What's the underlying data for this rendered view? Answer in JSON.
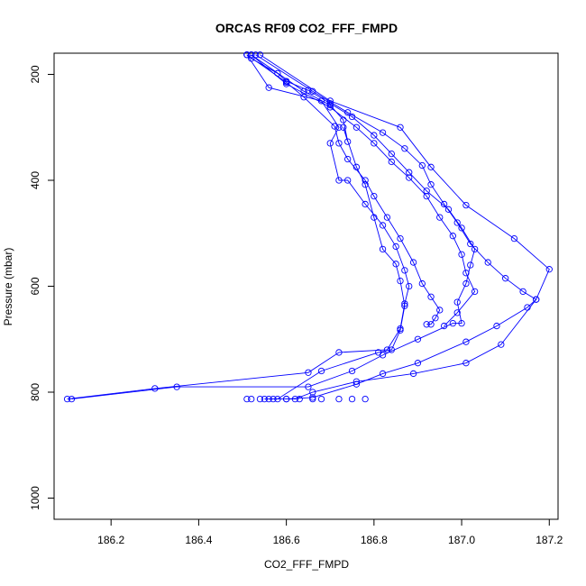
{
  "chart_data": {
    "type": "line",
    "title": "ORCAS RF09 CO2_FFF_FMPD",
    "xlabel": "CO2_FFF_FMPD",
    "ylabel": "Pressure (mbar)",
    "xlim": [
      186.07,
      187.22
    ],
    "ylim": [
      1040,
      160
    ],
    "x_ticks": [
      "186.2",
      "186.4",
      "186.6",
      "186.8",
      "187.0",
      "187.2"
    ],
    "y_ticks": [
      "200",
      "400",
      "600",
      "800",
      "1000"
    ],
    "grid": false,
    "legend": "none",
    "line_color": "#0000ff",
    "marker": "open-circle",
    "series": [
      {
        "x": [
          186.51,
          186.52,
          186.58,
          186.6,
          186.65,
          186.7,
          186.75,
          186.8,
          186.84,
          186.88,
          186.92,
          186.97,
          187.0,
          187.03,
          187.02,
          187.01,
          186.99,
          187.0,
          186.98,
          186.9,
          186.82,
          186.75,
          186.65,
          186.35,
          186.11
        ],
        "y": [
          163,
          170,
          198,
          213,
          230,
          255,
          280,
          315,
          350,
          385,
          420,
          455,
          490,
          530,
          560,
          595,
          630,
          670,
          670,
          700,
          730,
          760,
          790,
          790,
          813
        ]
      },
      {
        "x": [
          186.51,
          186.6,
          186.64,
          186.71,
          186.72,
          186.74,
          186.78,
          186.8,
          186.83,
          186.86,
          186.89,
          186.91,
          186.93,
          186.95,
          186.94,
          186.93,
          186.92
        ],
        "y": [
          163,
          215,
          243,
          298,
          330,
          360,
          400,
          430,
          470,
          510,
          555,
          595,
          620,
          645,
          660,
          672,
          672
        ]
      },
      {
        "x": [
          186.51,
          186.56,
          186.68,
          186.72,
          186.7,
          186.72,
          186.74,
          186.78,
          186.82,
          186.85,
          186.87,
          186.88,
          186.87,
          186.86,
          186.83,
          186.72,
          186.65,
          186.3,
          186.1
        ],
        "y": [
          163,
          225,
          250,
          300,
          330,
          400,
          400,
          445,
          485,
          525,
          570,
          600,
          633,
          680,
          720,
          725,
          763,
          793,
          813
        ]
      },
      {
        "x": [
          186.52,
          186.64,
          186.7,
          186.73,
          186.74,
          186.73,
          186.76,
          186.78,
          186.8,
          186.82,
          186.85,
          186.86,
          186.87,
          186.86,
          186.84,
          186.81,
          186.68,
          186.58,
          186.55
        ],
        "y": [
          163,
          232,
          258,
          286,
          327,
          300,
          375,
          408,
          470,
          530,
          558,
          590,
          637,
          683,
          720,
          725,
          760,
          813,
          813
        ]
      },
      {
        "x": [
          186.52,
          186.6,
          186.7,
          186.76,
          186.8,
          186.84,
          186.88,
          186.92,
          186.95,
          186.98,
          187.0,
          187.01,
          187.03,
          186.99,
          186.96
        ],
        "y": [
          163,
          218,
          262,
          300,
          330,
          365,
          395,
          430,
          470,
          505,
          540,
          575,
          610,
          650,
          675
        ]
      },
      {
        "x": [
          186.53,
          186.66,
          186.74,
          186.82,
          186.87,
          186.91,
          186.93,
          186.96,
          186.99,
          187.02,
          187.06,
          187.1,
          187.14,
          187.17,
          187.15,
          187.08,
          187.01,
          186.9,
          186.82,
          186.76,
          186.66,
          186.6
        ],
        "y": [
          163,
          232,
          272,
          310,
          340,
          372,
          408,
          445,
          480,
          520,
          555,
          585,
          610,
          625,
          640,
          675,
          705,
          745,
          765,
          785,
          810,
          813
        ]
      },
      {
        "x": [
          186.54,
          186.7,
          186.86,
          186.93,
          187.01,
          187.12,
          187.2,
          187.17,
          187.09,
          187.01,
          186.89,
          186.76,
          186.66,
          186.62,
          186.56
        ],
        "y": [
          163,
          250,
          300,
          375,
          447,
          510,
          568,
          625,
          710,
          745,
          765,
          780,
          800,
          813,
          813
        ]
      }
    ],
    "bottom_cluster": {
      "x": [
        186.51,
        186.52,
        186.54,
        186.57,
        186.6,
        186.63,
        186.66,
        186.68,
        186.72,
        186.75,
        186.78
      ],
      "y": [
        813,
        813,
        813,
        813,
        813,
        813,
        813,
        813,
        813,
        813,
        813
      ]
    }
  }
}
